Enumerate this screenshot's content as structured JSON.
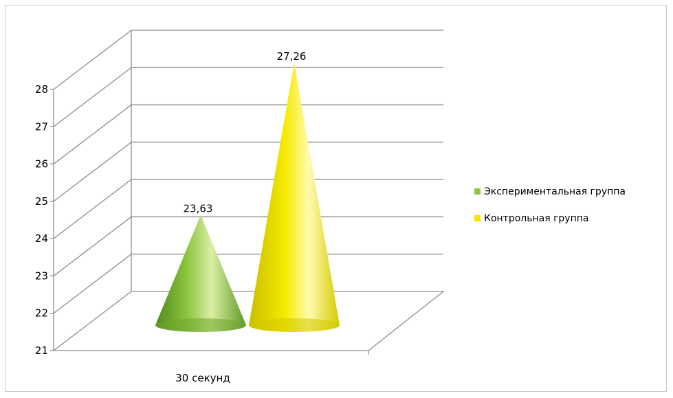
{
  "chart_data": {
    "type": "bar",
    "style": "3d-cone",
    "categories": [
      "30 секунд"
    ],
    "series": [
      {
        "name": "Экспериментальная группа",
        "values": [
          23.63
        ],
        "color": "#8dc63f",
        "label": "23,63"
      },
      {
        "name": "Контрольная группа",
        "values": [
          27.26
        ],
        "color": "#f2e600",
        "label": "27,26"
      }
    ],
    "ylim": [
      21,
      28
    ],
    "yticks": [
      "21",
      "22",
      "23",
      "24",
      "25",
      "26",
      "27",
      "28"
    ],
    "grid": true,
    "legend": "right"
  }
}
